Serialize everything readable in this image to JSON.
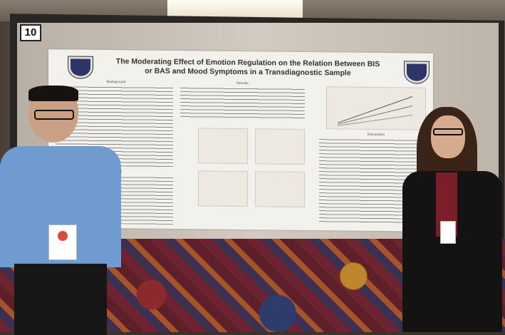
{
  "board_number": "10",
  "poster": {
    "title": "The Moderating Effect of Emotion Regulation on the Relation Between BIS or BAS and Mood Symptoms in a Transdiagnostic Sample",
    "sections": {
      "background": "Background",
      "results": "Results",
      "method": "Method",
      "discussion": "Discussion"
    }
  }
}
